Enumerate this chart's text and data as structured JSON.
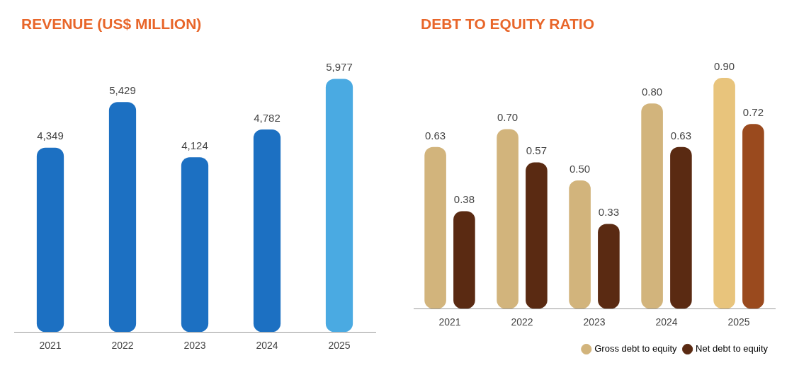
{
  "chart_data": [
    {
      "type": "bar",
      "title": "REVENUE (US$ MILLION)",
      "categories": [
        "2021",
        "2022",
        "2023",
        "2024",
        "2025"
      ],
      "series": [
        {
          "color": "#1c70c2",
          "colors": [
            "#1c70c2",
            "#1c70c2",
            "#1c70c2",
            "#1c70c2",
            "#4aaae2"
          ],
          "values": [
            4349,
            5429,
            4124,
            4782,
            5977
          ],
          "value_labels": [
            "4,349",
            "5,429",
            "4,124",
            "4,782",
            "5,977"
          ]
        }
      ],
      "grid": false,
      "legend": false
    },
    {
      "type": "bar",
      "title": "DEBT TO EQUITY RATIO",
      "categories": [
        "2021",
        "2022",
        "2023",
        "2024",
        "2025"
      ],
      "series": [
        {
          "name": "Gross debt to equity",
          "color": "#d2b47c",
          "colors": [
            "#d2b47c",
            "#d2b47c",
            "#d2b47c",
            "#d2b47c",
            "#e8c47c"
          ],
          "values": [
            0.63,
            0.7,
            0.5,
            0.8,
            0.9
          ],
          "value_labels": [
            "0.63",
            "0.70",
            "0.50",
            "0.80",
            "0.90"
          ]
        },
        {
          "name": "Net debt to equity",
          "color": "#5a2a12",
          "colors": [
            "#5a2a12",
            "#5a2a12",
            "#5a2a12",
            "#5a2a12",
            "#9a4a1e"
          ],
          "values": [
            0.38,
            0.57,
            0.33,
            0.63,
            0.72
          ],
          "value_labels": [
            "0.38",
            "0.57",
            "0.33",
            "0.63",
            "0.72"
          ]
        }
      ],
      "grid": false,
      "legend": "bottom right"
    }
  ]
}
